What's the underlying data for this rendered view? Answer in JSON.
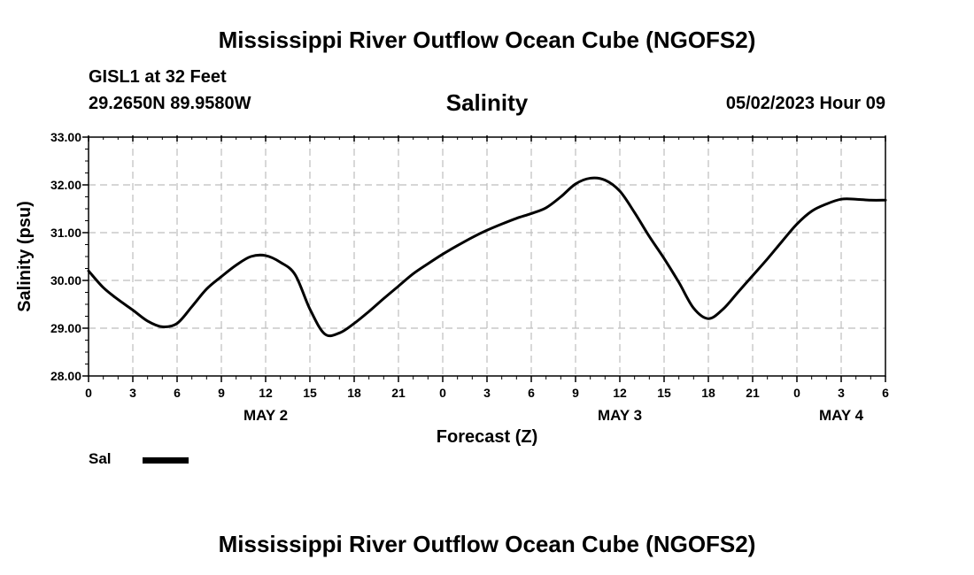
{
  "header": {
    "title": "Mississippi River Outflow Ocean Cube (NGOFS2)",
    "station": "GISL1 at 32 Feet",
    "coords": "29.2650N  89.9580W",
    "parameter": "Salinity",
    "datetime": "05/02/2023 Hour 09"
  },
  "footer": {
    "title": "Mississippi River Outflow Ocean Cube (NGOFS2)"
  },
  "legend": {
    "label": "Sal"
  },
  "chart_data": {
    "type": "line",
    "xlabel": "Forecast (Z)",
    "ylabel": "Salinity (psu)",
    "xlim": [
      0,
      54
    ],
    "ylim": [
      28.0,
      33.0
    ],
    "grid": true,
    "legend_position": "bottom-left",
    "y_ticks": [
      "28.00",
      "29.00",
      "30.00",
      "31.00",
      "32.00",
      "33.00"
    ],
    "x_tick_labels": [
      "0",
      "3",
      "6",
      "9",
      "12",
      "15",
      "18",
      "21",
      "0",
      "3",
      "6",
      "9",
      "12",
      "15",
      "18",
      "21",
      "0",
      "3",
      "6"
    ],
    "day_labels": [
      {
        "label": "MAY 2",
        "hour": 12
      },
      {
        "label": "MAY 3",
        "hour": 36
      },
      {
        "label": "MAY 4",
        "hour": 51
      }
    ],
    "series": [
      {
        "name": "Sal",
        "color": "#000000",
        "x": [
          0,
          1,
          2,
          3,
          4,
          5,
          6,
          7,
          8,
          9,
          10,
          11,
          12,
          13,
          14,
          15,
          16,
          17,
          18,
          19,
          20,
          21,
          22,
          23,
          24,
          25,
          26,
          27,
          28,
          29,
          30,
          31,
          32,
          33,
          34,
          35,
          36,
          37,
          38,
          39,
          40,
          41,
          42,
          43,
          44,
          45,
          46,
          47,
          48,
          49,
          50,
          51,
          52,
          53,
          54
        ],
        "values": [
          30.2,
          29.85,
          29.6,
          29.38,
          29.15,
          29.03,
          29.1,
          29.45,
          29.82,
          30.08,
          30.32,
          30.5,
          30.52,
          30.38,
          30.12,
          29.4,
          28.88,
          28.9,
          29.1,
          29.35,
          29.62,
          29.88,
          30.14,
          30.35,
          30.55,
          30.73,
          30.9,
          31.05,
          31.18,
          31.3,
          31.4,
          31.52,
          31.75,
          32.02,
          32.14,
          32.1,
          31.87,
          31.42,
          30.92,
          30.46,
          29.96,
          29.42,
          29.2,
          29.4,
          29.75,
          30.1,
          30.45,
          30.82,
          31.18,
          31.45,
          31.6,
          31.7,
          31.7,
          31.68,
          31.68
        ]
      }
    ]
  }
}
